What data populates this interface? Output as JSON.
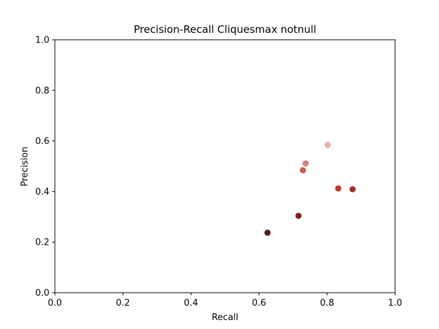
{
  "chart_data": {
    "type": "scatter",
    "title": "Precision-Recall Cliquesmax notnull",
    "xlabel": "Recall",
    "ylabel": "Precision",
    "xlim": [
      0.0,
      1.0
    ],
    "ylim": [
      0.0,
      1.0
    ],
    "xticks": [
      "0.0",
      "0.2",
      "0.4",
      "0.6",
      "0.8",
      "1.0"
    ],
    "yticks": [
      "0.0",
      "0.2",
      "0.4",
      "0.6",
      "0.8",
      "1.0"
    ],
    "grid": false,
    "points": [
      {
        "x": 0.625,
        "y": 0.237,
        "color": "#5c1a14"
      },
      {
        "x": 0.716,
        "y": 0.304,
        "color": "#7d241b"
      },
      {
        "x": 0.875,
        "y": 0.409,
        "color": "#a92d22"
      },
      {
        "x": 0.833,
        "y": 0.412,
        "color": "#c0392b"
      },
      {
        "x": 0.729,
        "y": 0.484,
        "color": "#cf5a50"
      },
      {
        "x": 0.737,
        "y": 0.511,
        "color": "#db7f78"
      },
      {
        "x": 0.802,
        "y": 0.584,
        "color": "#e8ada8"
      }
    ]
  }
}
